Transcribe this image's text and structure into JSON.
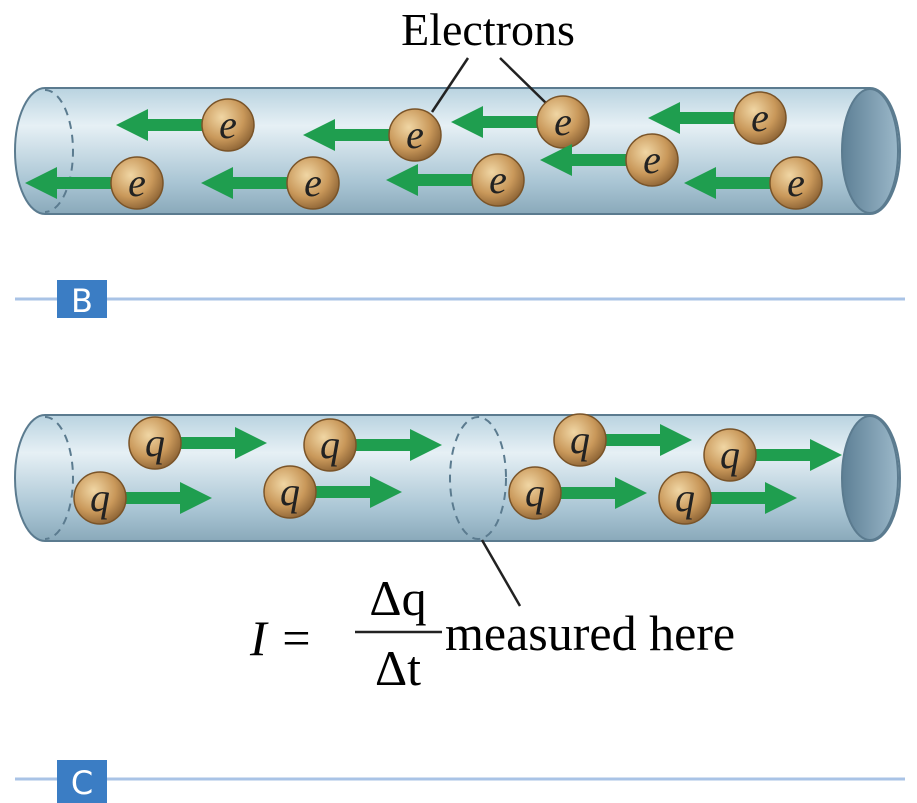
{
  "electrons": {
    "label": "Electrons",
    "particles": [
      "e",
      "e",
      "e",
      "e",
      "e",
      "e",
      "e",
      "e",
      "e"
    ]
  },
  "panel_b": {
    "label": "B"
  },
  "charges": {
    "particles": [
      "q",
      "q",
      "q",
      "q",
      "q",
      "q",
      "q",
      "q"
    ]
  },
  "formula": {
    "lhs": "I =",
    "numerator": "Δq",
    "denominator": "Δt",
    "note": "measured here"
  },
  "panel_c": {
    "label": "C"
  }
}
